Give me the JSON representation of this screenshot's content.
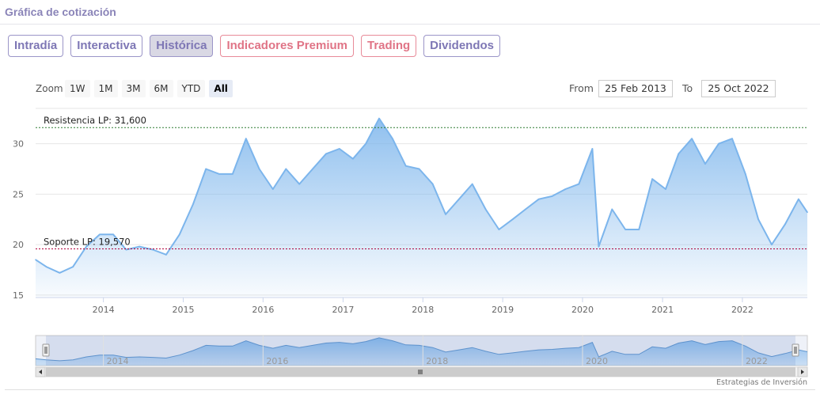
{
  "header": {
    "title": "Gráfica de cotización"
  },
  "tabs": [
    {
      "label": "Intradía",
      "variant": "normal"
    },
    {
      "label": "Interactiva",
      "variant": "normal"
    },
    {
      "label": "Histórica",
      "variant": "active"
    },
    {
      "label": "Indicadores Premium",
      "variant": "premium"
    },
    {
      "label": "Trading",
      "variant": "premium"
    },
    {
      "label": "Dividendos",
      "variant": "normal"
    }
  ],
  "range_selector": {
    "zoom_label": "Zoom",
    "buttons": [
      "1W",
      "1M",
      "3M",
      "6M",
      "YTD",
      "All"
    ],
    "selected": "All",
    "from_label": "From",
    "from_value": "25 Feb 2013",
    "to_label": "To",
    "to_value": "25 Oct 2022"
  },
  "credits": "Estrategias de Inversión",
  "colors": {
    "line": "#7cb5ec",
    "resistance": "#2e7d32",
    "support": "#b0003a",
    "accent": "#8a84b8",
    "premium": "#e07486"
  },
  "chart_data": {
    "type": "area",
    "title": "",
    "xlabel": "",
    "ylabel": "",
    "x_range": [
      "2013-02-25",
      "2022-10-25"
    ],
    "ylim": [
      15,
      33
    ],
    "y_ticks": [
      15,
      20,
      25,
      30
    ],
    "x_ticks": [
      "2014",
      "2015",
      "2016",
      "2017",
      "2018",
      "2019",
      "2020",
      "2021",
      "2022"
    ],
    "grid": true,
    "reference_lines": [
      {
        "label": "Resistencia LP: 31,600",
        "value": 31.6
      },
      {
        "label": "Soporte LP: 19,570",
        "value": 19.57
      }
    ],
    "navigator_ticks": [
      "2014",
      "2016",
      "2018",
      "2020",
      "2022"
    ],
    "series": [
      {
        "x": [
          "2013-02",
          "2013-04",
          "2013-06",
          "2013-08",
          "2013-10",
          "2013-12",
          "2014-02",
          "2014-04",
          "2014-06",
          "2014-08",
          "2014-10",
          "2014-12",
          "2015-02",
          "2015-04",
          "2015-06",
          "2015-08",
          "2015-10",
          "2015-12",
          "2016-02",
          "2016-04",
          "2016-06",
          "2016-08",
          "2016-10",
          "2016-12",
          "2017-02",
          "2017-04",
          "2017-06",
          "2017-08",
          "2017-10",
          "2017-12",
          "2018-02",
          "2018-04",
          "2018-06",
          "2018-08",
          "2018-10",
          "2018-12",
          "2019-02",
          "2019-04",
          "2019-06",
          "2019-08",
          "2019-10",
          "2019-12",
          "2020-02",
          "2020-03",
          "2020-05",
          "2020-07",
          "2020-09",
          "2020-11",
          "2021-01",
          "2021-03",
          "2021-05",
          "2021-07",
          "2021-09",
          "2021-11",
          "2022-01",
          "2022-03",
          "2022-05",
          "2022-07",
          "2022-09",
          "2022-10"
        ],
        "values": [
          18.5,
          17.8,
          17.2,
          17.8,
          19.8,
          21.0,
          21.0,
          19.5,
          19.8,
          19.5,
          19.0,
          21.0,
          24.0,
          27.5,
          27.0,
          27.0,
          30.5,
          27.5,
          25.5,
          27.5,
          26.0,
          27.5,
          29.0,
          29.5,
          28.5,
          30.0,
          32.5,
          30.5,
          27.8,
          27.5,
          26.0,
          23.0,
          24.5,
          26.0,
          23.5,
          21.5,
          22.5,
          23.5,
          24.5,
          24.8,
          25.5,
          26.0,
          29.5,
          19.8,
          23.5,
          21.5,
          21.5,
          26.5,
          25.5,
          29.0,
          30.5,
          28.0,
          30.0,
          30.5,
          27.0,
          22.5,
          20.0,
          22.0,
          24.5,
          23.2
        ]
      }
    ]
  }
}
